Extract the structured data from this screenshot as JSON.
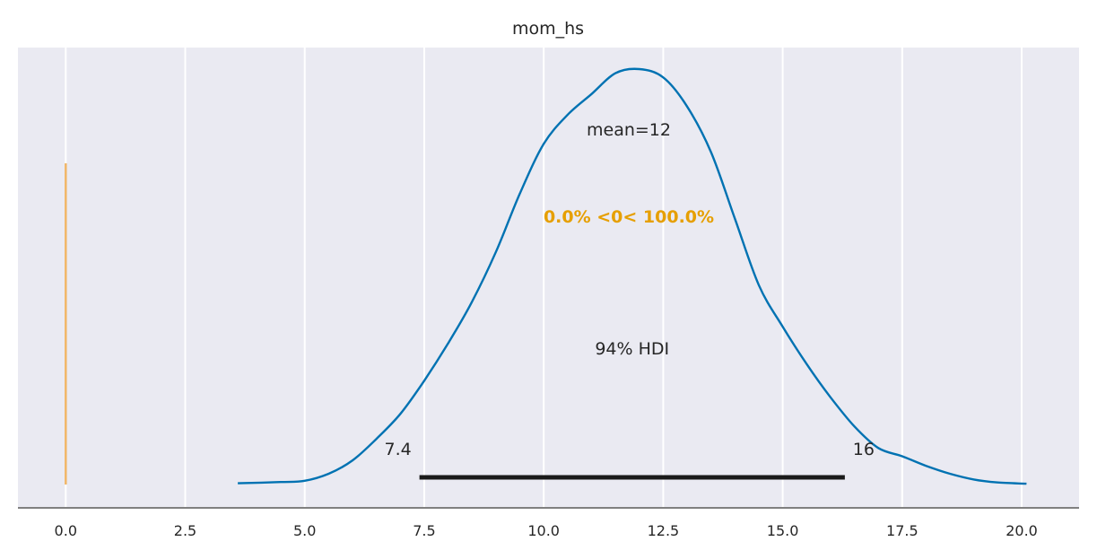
{
  "chart_data": {
    "type": "line",
    "title": "mom_hs",
    "xlabel": "",
    "ylabel": "",
    "xlim": [
      -1.0,
      21.2
    ],
    "xticks": [
      0.0,
      2.5,
      5.0,
      7.5,
      10.0,
      12.5,
      15.0,
      17.5,
      20.0
    ],
    "xtick_labels": [
      "0.0",
      "2.5",
      "5.0",
      "7.5",
      "10.0",
      "12.5",
      "15.0",
      "17.5",
      "20.0"
    ],
    "grid": "vertical",
    "series": [
      {
        "color": "#0072b2",
        "x": [
          3.6,
          4.5,
          5.0,
          5.5,
          6.0,
          6.5,
          7.0,
          7.5,
          8.0,
          8.5,
          9.0,
          9.5,
          10.0,
          10.5,
          11.0,
          11.5,
          12.0,
          12.5,
          13.0,
          13.5,
          14.0,
          14.5,
          15.0,
          15.5,
          16.0,
          16.5,
          17.0,
          17.5,
          18.0,
          18.5,
          19.0,
          19.5,
          20.1
        ],
        "y": [
          0.003,
          0.006,
          0.009,
          0.026,
          0.058,
          0.11,
          0.17,
          0.25,
          0.34,
          0.44,
          0.56,
          0.7,
          0.82,
          0.89,
          0.94,
          0.99,
          1.0,
          0.98,
          0.91,
          0.8,
          0.64,
          0.48,
          0.38,
          0.29,
          0.21,
          0.14,
          0.088,
          0.068,
          0.045,
          0.026,
          0.012,
          0.005,
          0.002
        ]
      }
    ],
    "hdi": {
      "label": "94% HDI",
      "low": 7.4,
      "high": 16.3,
      "low_label": "7.4",
      "high_label": "16"
    },
    "point_estimate": {
      "label": "mean=12"
    },
    "ref_val": {
      "value": 0,
      "text": "0.0% <0< 100.0%",
      "color": "#e69f00",
      "line_color": "#f1b768"
    }
  }
}
